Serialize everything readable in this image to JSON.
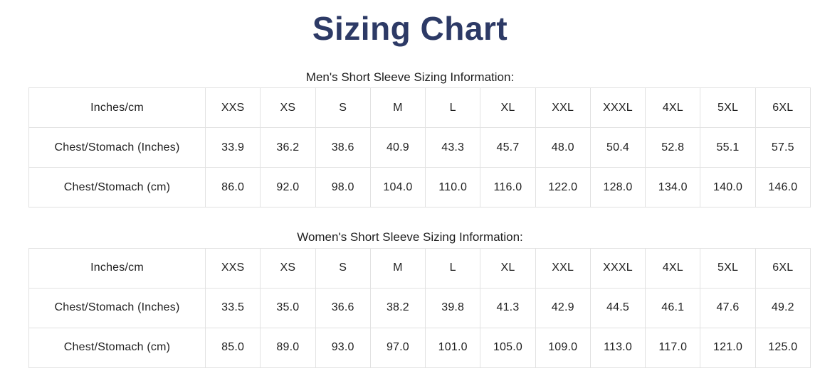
{
  "page": {
    "title": "Sizing Chart"
  },
  "colors": {
    "title": "#2d3a66",
    "text": "#1f1f1f",
    "border": "#e2e2e2",
    "background": "#ffffff"
  },
  "tables": [
    {
      "id": "mens-short-sleeve",
      "heading": "Men's Short Sleeve Sizing Information:",
      "columns": [
        "Inches/cm",
        "XXS",
        "XS",
        "S",
        "M",
        "L",
        "XL",
        "XXL",
        "XXXL",
        "4XL",
        "5XL",
        "6XL"
      ],
      "rows": [
        {
          "label": "Chest/Stomach (Inches)",
          "values": [
            "33.9",
            "36.2",
            "38.6",
            "40.9",
            "43.3",
            "45.7",
            "48.0",
            "50.4",
            "52.8",
            "55.1",
            "57.5"
          ]
        },
        {
          "label": "Chest/Stomach (cm)",
          "values": [
            "86.0",
            "92.0",
            "98.0",
            "104.0",
            "110.0",
            "116.0",
            "122.0",
            "128.0",
            "134.0",
            "140.0",
            "146.0"
          ]
        }
      ]
    },
    {
      "id": "womens-short-sleeve",
      "heading": "Women's Short Sleeve Sizing Information:",
      "columns": [
        "Inches/cm",
        "XXS",
        "XS",
        "S",
        "M",
        "L",
        "XL",
        "XXL",
        "XXXL",
        "4XL",
        "5XL",
        "6XL"
      ],
      "rows": [
        {
          "label": "Chest/Stomach (Inches)",
          "values": [
            "33.5",
            "35.0",
            "36.6",
            "38.2",
            "39.8",
            "41.3",
            "42.9",
            "44.5",
            "46.1",
            "47.6",
            "49.2"
          ]
        },
        {
          "label": "Chest/Stomach (cm)",
          "values": [
            "85.0",
            "89.0",
            "93.0",
            "97.0",
            "101.0",
            "105.0",
            "109.0",
            "113.0",
            "117.0",
            "121.0",
            "125.0"
          ]
        }
      ]
    }
  ]
}
